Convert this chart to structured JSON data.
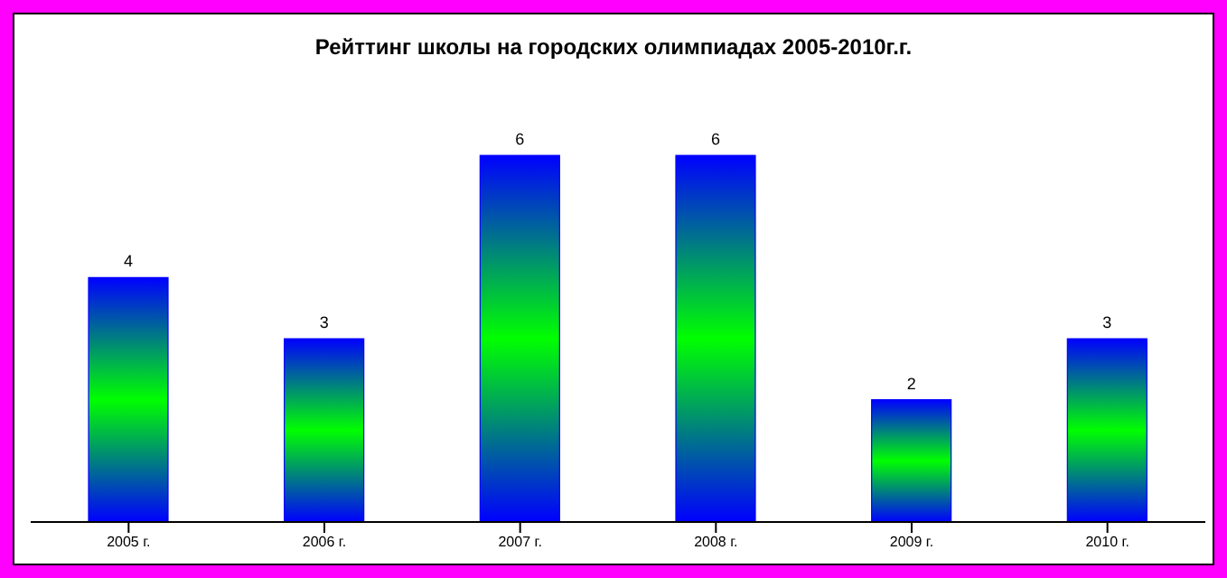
{
  "chart_data": {
    "type": "bar",
    "title": "Рейттинг школы на городских олимпиадах 2005-2010г.г.",
    "categories": [
      "2005 г.",
      "2006 г.",
      "2007 г.",
      "2008 г.",
      "2009 г.",
      "2010 г."
    ],
    "series": [
      {
        "color": "#0000ff",
        "values": [
          4,
          3,
          6,
          6,
          2,
          3
        ]
      }
    ],
    "data_labels": true,
    "grid": false,
    "legend": false
  }
}
